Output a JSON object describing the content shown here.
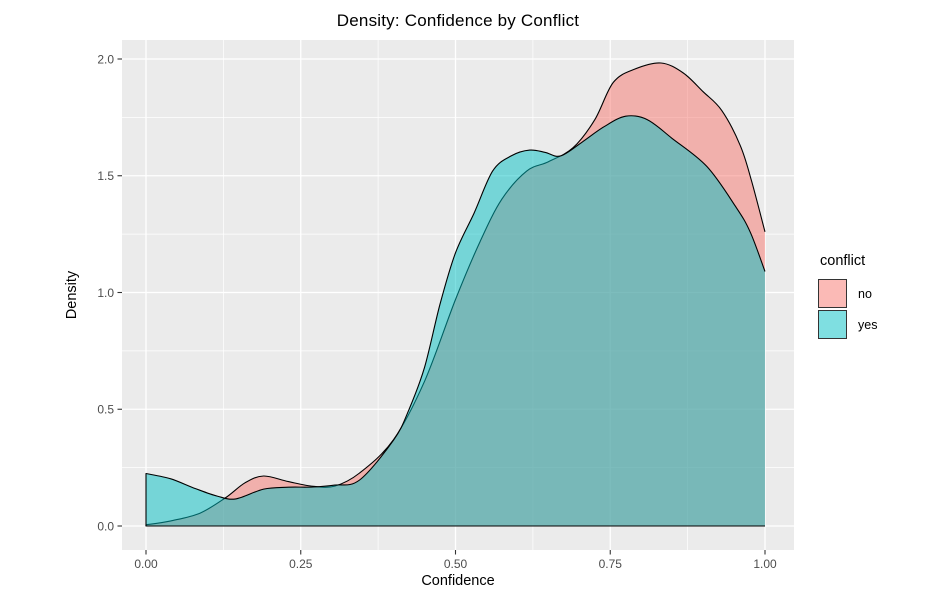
{
  "title": "Density: Confidence by Conflict",
  "chart_data": {
    "type": "area",
    "subtype": "kernel-density",
    "title": "Density: Confidence by Conflict",
    "xlabel": "Confidence",
    "ylabel": "Density",
    "xlim": [
      0,
      1
    ],
    "ylim": [
      0,
      2
    ],
    "x_ticks": [
      0,
      0.25,
      0.5,
      0.75,
      1
    ],
    "x_tick_labels": [
      "0.00",
      "0.25",
      "0.50",
      "0.75",
      "1.00"
    ],
    "y_ticks": [
      0,
      0.5,
      1,
      1.5,
      2
    ],
    "y_tick_labels": [
      "0.0",
      "0.5",
      "1.0",
      "1.5",
      "2.0"
    ],
    "grid": {
      "major": true,
      "minor": true
    },
    "fill_alpha": 0.5,
    "legend": {
      "title": "conflict",
      "position": "right",
      "entries": [
        {
          "label": "no",
          "color": "#F8766D"
        },
        {
          "label": "yes",
          "color": "#00BFC4"
        }
      ]
    },
    "series": [
      {
        "name": "no",
        "color": "#F8766D",
        "points": [
          [
            0,
            0.005
          ],
          [
            0.04,
            0.022
          ],
          [
            0.087,
            0.055
          ],
          [
            0.128,
            0.12
          ],
          [
            0.16,
            0.185
          ],
          [
            0.19,
            0.214
          ],
          [
            0.23,
            0.19
          ],
          [
            0.27,
            0.17
          ],
          [
            0.305,
            0.171
          ],
          [
            0.345,
            0.227
          ],
          [
            0.4,
            0.37
          ],
          [
            0.45,
            0.62
          ],
          [
            0.5,
            0.97
          ],
          [
            0.54,
            1.22
          ],
          [
            0.575,
            1.4
          ],
          [
            0.615,
            1.52
          ],
          [
            0.65,
            1.56
          ],
          [
            0.69,
            1.62
          ],
          [
            0.725,
            1.74
          ],
          [
            0.755,
            1.9
          ],
          [
            0.79,
            1.957
          ],
          [
            0.832,
            1.983
          ],
          [
            0.868,
            1.94
          ],
          [
            0.9,
            1.86
          ],
          [
            0.93,
            1.78
          ],
          [
            0.96,
            1.63
          ],
          [
            0.978,
            1.48
          ],
          [
            1,
            1.26
          ]
        ]
      },
      {
        "name": "yes",
        "color": "#00BFC4",
        "points": [
          [
            0,
            0.225
          ],
          [
            0.04,
            0.202
          ],
          [
            0.08,
            0.16
          ],
          [
            0.115,
            0.128
          ],
          [
            0.145,
            0.116
          ],
          [
            0.19,
            0.158
          ],
          [
            0.23,
            0.166
          ],
          [
            0.27,
            0.167
          ],
          [
            0.305,
            0.175
          ],
          [
            0.345,
            0.197
          ],
          [
            0.4,
            0.368
          ],
          [
            0.425,
            0.5
          ],
          [
            0.45,
            0.68
          ],
          [
            0.475,
            0.95
          ],
          [
            0.5,
            1.17
          ],
          [
            0.53,
            1.34
          ],
          [
            0.56,
            1.52
          ],
          [
            0.59,
            1.585
          ],
          [
            0.62,
            1.61
          ],
          [
            0.645,
            1.6
          ],
          [
            0.67,
            1.585
          ],
          [
            0.705,
            1.645
          ],
          [
            0.74,
            1.71
          ],
          [
            0.775,
            1.755
          ],
          [
            0.81,
            1.74
          ],
          [
            0.85,
            1.66
          ],
          [
            0.906,
            1.54
          ],
          [
            0.952,
            1.37
          ],
          [
            0.976,
            1.26
          ],
          [
            1,
            1.09
          ]
        ]
      }
    ]
  },
  "style": {
    "page_bg": "#FFFFFF",
    "panel_bg": "#EBEBEB",
    "grid_color": "#FFFFFF",
    "tick_color": "#333333",
    "tick_label_color": "#4D4D4D",
    "text_color": "#000000",
    "outline_color": "#000000"
  }
}
